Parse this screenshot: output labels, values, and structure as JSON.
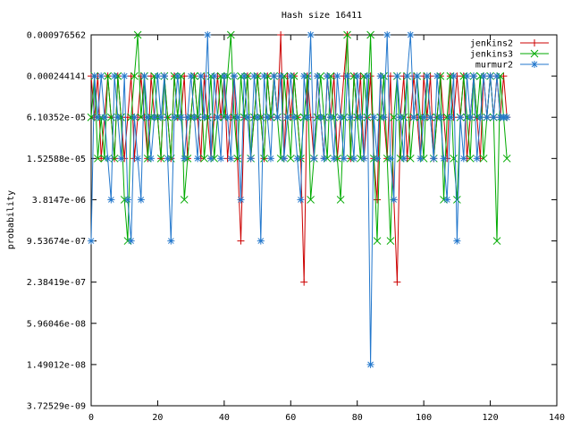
{
  "chart_data": {
    "type": "line",
    "title": "Hash size 16411",
    "ylabel": "probability",
    "xlabel": "",
    "xlim": [
      0,
      140
    ],
    "x_ticks": [
      "0",
      "20",
      "40",
      "60",
      "80",
      "100",
      "120",
      "140"
    ],
    "y_scale": "log4",
    "y_ticks": [
      "0.000976562",
      "0.000244141",
      "6.10352e-05",
      "1.52588e-05",
      "3.8147e-06",
      "9.53674e-07",
      "2.38419e-07",
      "5.96046e-08",
      "1.49012e-08",
      "3.72529e-09"
    ],
    "ylim_exponent_base4": [
      -14,
      -5
    ],
    "grid": false,
    "legend_position": "top-right",
    "note": "y values are stored as base-4 exponents n, probability = 4^n",
    "series": [
      {
        "name": "jenkins2",
        "color": "#cc0000",
        "marker": "plus",
        "x": [
          0,
          1,
          2,
          3,
          4,
          5,
          6,
          7,
          8,
          9,
          10,
          11,
          12,
          13,
          14,
          15,
          16,
          17,
          18,
          19,
          20,
          21,
          22,
          23,
          24,
          25,
          26,
          27,
          28,
          29,
          30,
          31,
          32,
          33,
          34,
          35,
          36,
          37,
          38,
          39,
          40,
          41,
          42,
          43,
          44,
          45,
          46,
          47,
          48,
          49,
          50,
          51,
          52,
          53,
          54,
          55,
          56,
          57,
          58,
          59,
          60,
          61,
          62,
          63,
          64,
          65,
          66,
          67,
          68,
          69,
          70,
          71,
          72,
          73,
          74,
          75,
          76,
          77,
          78,
          79,
          80,
          81,
          82,
          83,
          84,
          85,
          86,
          87,
          88,
          89,
          90,
          91,
          92,
          93,
          94,
          95,
          96,
          97,
          98,
          99,
          100,
          101,
          102,
          103,
          104,
          105,
          106,
          107,
          108,
          109,
          110,
          111,
          112,
          113,
          114,
          115,
          116,
          117,
          118,
          119,
          120,
          121,
          122,
          123,
          124,
          125
        ],
        "y": [
          -6,
          -7,
          -6,
          -8,
          -7,
          -6,
          -7,
          -8,
          -6,
          -7,
          -8,
          -7,
          -6,
          -8,
          -7,
          -6,
          -7,
          -8,
          -6,
          -7,
          -7,
          -8,
          -6,
          -7,
          -8,
          -6,
          -7,
          -7,
          -6,
          -8,
          -7,
          -6,
          -7,
          -8,
          -6,
          -7,
          -8,
          -7,
          -6,
          -7,
          -6,
          -8,
          -7,
          -6,
          -8,
          -10,
          -7,
          -6,
          -8,
          -7,
          -6,
          -7,
          -8,
          -6,
          -7,
          -6,
          -7,
          -5,
          -8,
          -6,
          -7,
          -6,
          -7,
          -8,
          -11,
          -6,
          -7,
          -8,
          -6,
          -7,
          -8,
          -6,
          -7,
          -6,
          -8,
          -7,
          -6,
          -5,
          -8,
          -6,
          -7,
          -6,
          -8,
          -7,
          -6,
          -8,
          -9,
          -6,
          -7,
          -8,
          -6,
          -9,
          -11,
          -7,
          -6,
          -8,
          -7,
          -6,
          -7,
          -8,
          -6,
          -7,
          -6,
          -8,
          -7,
          -6,
          -7,
          -8,
          -6,
          -7,
          -6,
          -7,
          -6,
          -8,
          -7,
          -6,
          -7,
          -8,
          -6,
          -7,
          -6,
          -7,
          -6,
          -7,
          -6,
          -7
        ]
      },
      {
        "name": "jenkins3",
        "color": "#00aa00",
        "marker": "cross",
        "x": [
          0,
          1,
          2,
          3,
          4,
          5,
          6,
          7,
          8,
          9,
          10,
          11,
          12,
          13,
          14,
          15,
          16,
          17,
          18,
          19,
          20,
          21,
          22,
          23,
          24,
          25,
          26,
          27,
          28,
          29,
          30,
          31,
          32,
          33,
          34,
          35,
          36,
          37,
          38,
          39,
          40,
          41,
          42,
          43,
          44,
          45,
          46,
          47,
          48,
          49,
          50,
          51,
          52,
          53,
          54,
          55,
          56,
          57,
          58,
          59,
          60,
          61,
          62,
          63,
          64,
          65,
          66,
          67,
          68,
          69,
          70,
          71,
          72,
          73,
          74,
          75,
          76,
          77,
          78,
          79,
          80,
          81,
          82,
          83,
          84,
          85,
          86,
          87,
          88,
          89,
          90,
          91,
          92,
          93,
          94,
          95,
          96,
          97,
          98,
          99,
          100,
          101,
          102,
          103,
          104,
          105,
          106,
          107,
          108,
          109,
          110,
          111,
          112,
          113,
          114,
          115,
          116,
          117,
          118,
          119,
          120,
          121,
          122,
          123,
          124,
          125
        ],
        "y": [
          -7,
          -6,
          -8,
          -7,
          -8,
          -6,
          -7,
          -8,
          -6,
          -7,
          -9,
          -10,
          -7,
          -6,
          -5,
          -7,
          -6,
          -8,
          -7,
          -6,
          -7,
          -8,
          -6,
          -7,
          -8,
          -6,
          -7,
          -6,
          -9,
          -8,
          -7,
          -6,
          -7,
          -6,
          -8,
          -7,
          -6,
          -8,
          -7,
          -6,
          -7,
          -6,
          -5,
          -7,
          -8,
          -6,
          -7,
          -6,
          -8,
          -7,
          -6,
          -7,
          -8,
          -6,
          -7,
          -6,
          -7,
          -8,
          -6,
          -7,
          -8,
          -6,
          -7,
          -8,
          -7,
          -6,
          -9,
          -8,
          -7,
          -6,
          -7,
          -8,
          -6,
          -7,
          -8,
          -9,
          -7,
          -5,
          -8,
          -6,
          -7,
          -8,
          -6,
          -7,
          -5,
          -8,
          -10,
          -7,
          -6,
          -8,
          -10,
          -7,
          -6,
          -8,
          -7,
          -6,
          -8,
          -7,
          -6,
          -7,
          -8,
          -6,
          -7,
          -8,
          -7,
          -6,
          -9,
          -7,
          -6,
          -8,
          -9,
          -7,
          -6,
          -7,
          -8,
          -6,
          -7,
          -6,
          -8,
          -7,
          -6,
          -7,
          -10,
          -6,
          -7,
          -8
        ]
      },
      {
        "name": "murmur2",
        "color": "#2277cc",
        "marker": "star",
        "x": [
          0,
          1,
          2,
          3,
          4,
          5,
          6,
          7,
          8,
          9,
          10,
          11,
          12,
          13,
          14,
          15,
          16,
          17,
          18,
          19,
          20,
          21,
          22,
          23,
          24,
          25,
          26,
          27,
          28,
          29,
          30,
          31,
          32,
          33,
          34,
          35,
          36,
          37,
          38,
          39,
          40,
          41,
          42,
          43,
          44,
          45,
          46,
          47,
          48,
          49,
          50,
          51,
          52,
          53,
          54,
          55,
          56,
          57,
          58,
          59,
          60,
          61,
          62,
          63,
          64,
          65,
          66,
          67,
          68,
          69,
          70,
          71,
          72,
          73,
          74,
          75,
          76,
          77,
          78,
          79,
          80,
          81,
          82,
          83,
          84,
          85,
          86,
          87,
          88,
          89,
          90,
          91,
          92,
          93,
          94,
          95,
          96,
          97,
          98,
          99,
          100,
          101,
          102,
          103,
          104,
          105,
          106,
          107,
          108,
          109,
          110,
          111,
          112,
          113,
          114,
          115,
          116,
          117,
          118,
          119,
          120,
          121,
          122,
          123,
          124,
          125
        ],
        "y": [
          -10,
          -6,
          -7,
          -6,
          -7,
          -8,
          -9,
          -6,
          -7,
          -8,
          -6,
          -9,
          -10,
          -7,
          -8,
          -9,
          -6,
          -7,
          -8,
          -7,
          -6,
          -7,
          -6,
          -8,
          -10,
          -7,
          -6,
          -7,
          -8,
          -7,
          -6,
          -7,
          -8,
          -6,
          -7,
          -5,
          -8,
          -6,
          -7,
          -8,
          -6,
          -7,
          -8,
          -6,
          -7,
          -9,
          -6,
          -7,
          -8,
          -6,
          -7,
          -10,
          -6,
          -7,
          -8,
          -6,
          -7,
          -6,
          -8,
          -7,
          -6,
          -7,
          -8,
          -9,
          -6,
          -7,
          -5,
          -8,
          -6,
          -7,
          -8,
          -6,
          -7,
          -8,
          -6,
          -7,
          -8,
          -6,
          -7,
          -8,
          -6,
          -7,
          -8,
          -6,
          -13,
          -7,
          -8,
          -6,
          -7,
          -5,
          -8,
          -9,
          -6,
          -7,
          -8,
          -6,
          -5,
          -7,
          -6,
          -8,
          -7,
          -6,
          -7,
          -8,
          -6,
          -7,
          -8,
          -9,
          -7,
          -6,
          -10,
          -7,
          -8,
          -6,
          -7,
          -6,
          -8,
          -7,
          -6,
          -7,
          -6,
          -7,
          -6,
          -7,
          -7,
          -7
        ]
      }
    ]
  }
}
